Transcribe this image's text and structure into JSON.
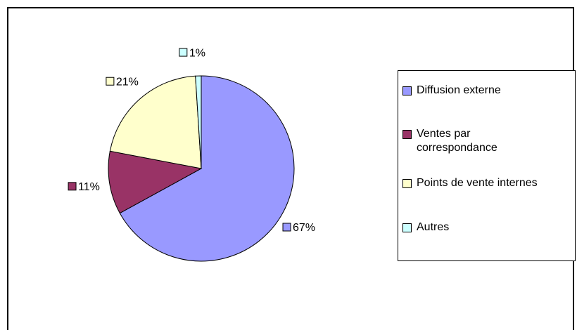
{
  "chart_data": {
    "type": "pie",
    "categories": [
      "Diffusion externe",
      "Ventes par correspondance",
      "Points de vente internes",
      "Autres"
    ],
    "values": [
      67,
      11,
      21,
      1
    ],
    "value_labels": [
      "67%",
      "11%",
      "21%",
      "1%"
    ],
    "colors": [
      "#9999ff",
      "#993366",
      "#ffffcc",
      "#ccffff"
    ],
    "legend": "right"
  }
}
